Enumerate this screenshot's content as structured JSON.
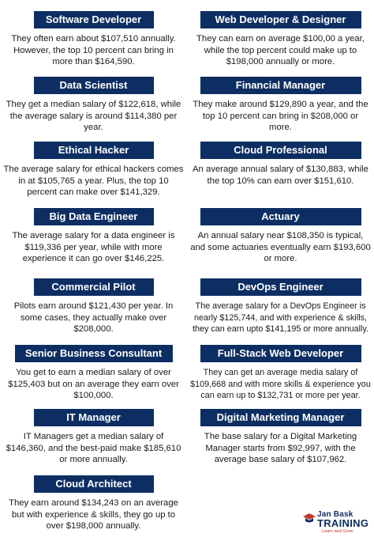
{
  "cards": [
    {
      "title": "Software Developer",
      "text": "They often earn about $107,510 annually. However, the top 10 percent can bring in more than $164,590."
    },
    {
      "title": "Web Developer & Designer",
      "text": "They can earn on average $100,00 a year, while the  top percent could make up to $198,000 annually or more."
    },
    {
      "title": "Data Scientist",
      "text": "They get a median salary of $122,618, while the average salary is around $114,380 per year."
    },
    {
      "title": "Financial Manager",
      "text": "They make around $129,890 a year, and the top 10 percent can bring in $208,000 or more."
    },
    {
      "title": "Ethical Hacker",
      "text": "The average salary for ethical hackers comes in at $105,765 a year. Plus, the top 10 percent can make over $141,329."
    },
    {
      "title": "Cloud Professional",
      "text": "An average annual salary of $130,883, while the top 10% can earn over $151,610."
    },
    {
      "title": "Big Data Engineer",
      "text": "The average salary for a data engineer is $119,336 per year, while with more experience it can go over $146,225."
    },
    {
      "title": "Actuary",
      "text": "An annual salary near $108,350 is typical, and some actuaries eventually earn $193,600 or more."
    },
    {
      "title": "Commercial Pilot",
      "text": "Pilots earn around $121,430 per year. In some cases, they actually make over $208,000."
    },
    {
      "title": "DevOps Engineer",
      "text": "The average salary for a DevOps Engineer is nearly $125,744, and with experience & skills, they can earn upto $141,195 or more annually."
    },
    {
      "title": "Senior Business Consultant",
      "text": "You get to earn a median salary of over $125,403 but on an average they earn over $100,000."
    },
    {
      "title": "Full-Stack Web Developer",
      "text": "They can get an average media salary of $109,668 and with more skills & experience you can earn up to $132,731 or more per year."
    },
    {
      "title": "IT Manager",
      "text": "IT Managers get a median salary of $146,360, and the best-paid make $185,610 or more annually."
    },
    {
      "title": "Digital Marketing Manager",
      "text": "The base salary for a Digital Marketing Manager starts from $92,997, with the average base salary of $107,962."
    },
    {
      "title": "Cloud Architect",
      "text": "They earn around $134,243 on an average but with experience & skills, they go up to over $198,000 annually."
    }
  ],
  "logo": {
    "line1": "Jan Bask",
    "line2": "TRAINING",
    "tagline": "Learn and Grow"
  },
  "colors": {
    "header_bg": "#0d2e62",
    "header_text": "#ffffff",
    "body_text": "#1a1a1a"
  }
}
